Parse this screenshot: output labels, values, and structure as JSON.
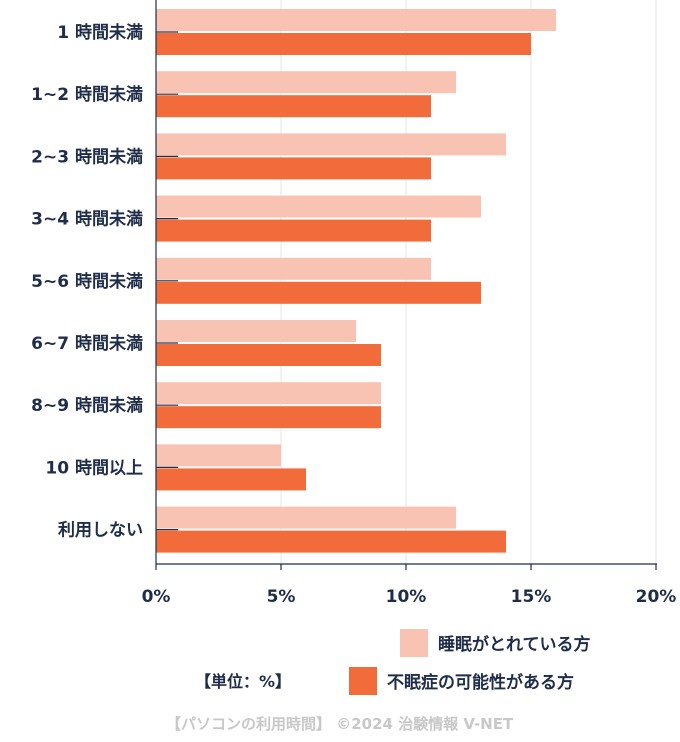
{
  "chart_data": {
    "type": "bar",
    "orientation": "horizontal",
    "categories": [
      "1 時間未満",
      "1~2 時間未満",
      "2~3 時間未満",
      "3~4 時間未満",
      "5~6 時間未満",
      "6~7 時間未満",
      "8~9 時間未満",
      "10 時間以上",
      "利用しない"
    ],
    "series": [
      {
        "name": "睡眠がとれている方",
        "color": "#f8c3b2",
        "values": [
          16,
          12,
          14,
          13,
          11,
          8,
          9,
          5,
          12
        ]
      },
      {
        "name": "不眠症の可能性がある方",
        "color": "#f26b3a",
        "values": [
          15,
          11,
          11,
          11,
          13,
          9,
          9,
          6,
          14
        ]
      }
    ],
    "xlim": [
      0,
      20
    ],
    "xticks": [
      0,
      5,
      10,
      15,
      20
    ],
    "xtick_labels": [
      "0%",
      "5%",
      "10%",
      "15%",
      "20%"
    ],
    "grid": true,
    "legend": "bottom-right",
    "unit_note": "【単位：%】",
    "credit": "【パソコンの利用時間】 ©2024 治験情報 V-NET"
  }
}
